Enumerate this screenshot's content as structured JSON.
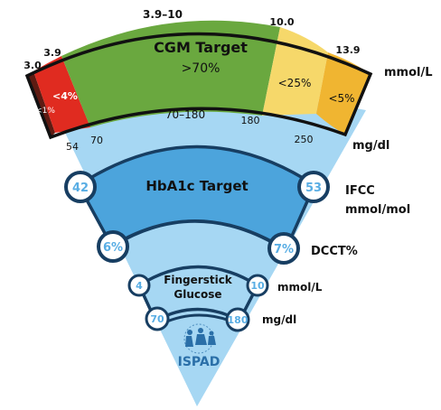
{
  "colors": {
    "dark_red": "#5e1b12",
    "red": "#e02b20",
    "green": "#6aa83f",
    "yellow": "#f6d86a",
    "orange": "#f0b531",
    "light_blue": "#a6d7f3",
    "mid_blue": "#4ca4dc",
    "dark_outline": "#173e62",
    "number_blue": "#58ade4"
  },
  "cgm": {
    "title": "CGM Target",
    "main_pct": ">70%",
    "below_4": "<4%",
    "below_1": "<1%",
    "above_25": "<25%",
    "above_5": "<5%",
    "range_mmol_top": "3.9–10",
    "range_mgdl": "70–180",
    "mmol": {
      "v30": "3.0",
      "v39": "3.9",
      "v100": "10.0",
      "v139": "13.9"
    },
    "mgdl": {
      "v54": "54",
      "v70": "70",
      "v180": "180",
      "v250": "250"
    },
    "unit_mmol": "mmol/L",
    "unit_mgdl": "mg/dl"
  },
  "hba1c": {
    "title": "HbA1c Target",
    "ifcc_low": "42",
    "ifcc_high": "53",
    "ifcc_unit_line1": "IFCC",
    "ifcc_unit_line2": "mmol/mol",
    "dcct_low": "6%",
    "dcct_high": "7%",
    "dcct_unit": "DCCT%"
  },
  "fingerstick": {
    "title_line1": "Fingerstick",
    "title_line2": "Glucose",
    "mmol_low": "4",
    "mmol_high": "10",
    "mmol_unit": "mmol/L",
    "mgdl_low": "70",
    "mgdl_high": "180",
    "mgdl_unit": "mg/dl"
  },
  "logo": {
    "text": "ISPAD",
    "icon": "ispad-children-logo-icon"
  }
}
